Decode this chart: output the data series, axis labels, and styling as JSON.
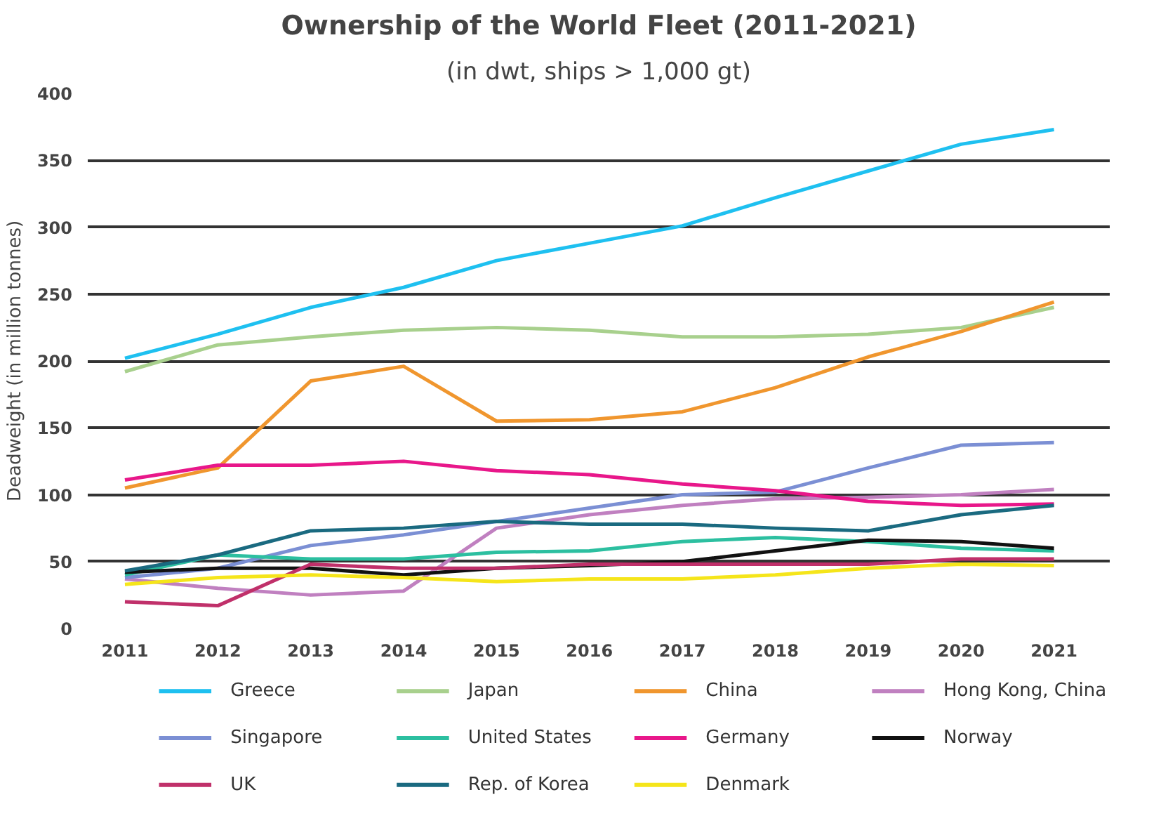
{
  "chart_data": {
    "type": "line",
    "title": "Ownership of the World Fleet (2011-2021)",
    "subtitle": "(in dwt, ships > 1,000 gt)",
    "ylabel": "Deadweight (in million tonnes)",
    "x": [
      2011,
      2012,
      2013,
      2014,
      2015,
      2016,
      2017,
      2018,
      2019,
      2020,
      2021
    ],
    "xlim": [
      2010.6,
      2021.6
    ],
    "xticks": [
      2011,
      2012,
      2013,
      2014,
      2015,
      2016,
      2017,
      2018,
      2019,
      2020,
      2021
    ],
    "ylim": [
      0,
      400
    ],
    "yticks": [
      0,
      50,
      100,
      150,
      200,
      250,
      300,
      350,
      400
    ],
    "grid": "y",
    "legend": "bottom",
    "series": [
      {
        "name": "Greece",
        "color": "#1ec0f0",
        "values": [
          202,
          220,
          240,
          255,
          275,
          288,
          301,
          322,
          342,
          362,
          373
        ]
      },
      {
        "name": "Japan",
        "color": "#a8d08d",
        "values": [
          192,
          212,
          218,
          223,
          225,
          223,
          218,
          218,
          220,
          225,
          240
        ]
      },
      {
        "name": "China",
        "color": "#f0962e",
        "values": [
          105,
          120,
          185,
          196,
          155,
          156,
          162,
          180,
          203,
          222,
          244
        ]
      },
      {
        "name": "Hong Kong, China",
        "color": "#c080c0",
        "values": [
          37,
          30,
          25,
          28,
          75,
          85,
          92,
          97,
          98,
          100,
          104
        ]
      },
      {
        "name": "Singapore",
        "color": "#7b8fd4",
        "values": [
          38,
          45,
          62,
          70,
          80,
          90,
          100,
          102,
          120,
          137,
          139
        ]
      },
      {
        "name": "United States",
        "color": "#2cbfa0",
        "values": [
          40,
          55,
          52,
          52,
          57,
          58,
          65,
          68,
          65,
          60,
          58
        ]
      },
      {
        "name": "Germany",
        "color": "#e8178a",
        "values": [
          111,
          122,
          122,
          125,
          118,
          115,
          108,
          103,
          95,
          92,
          93
        ]
      },
      {
        "name": "Norway",
        "color": "#111111",
        "values": [
          42,
          45,
          45,
          40,
          45,
          47,
          50,
          58,
          66,
          65,
          60
        ]
      },
      {
        "name": "UK",
        "color": "#c0306a",
        "values": [
          20,
          17,
          48,
          45,
          45,
          48,
          48,
          48,
          48,
          52,
          52
        ]
      },
      {
        "name": "Rep. of Korea",
        "color": "#1a6a80",
        "values": [
          43,
          55,
          73,
          75,
          80,
          78,
          78,
          75,
          73,
          85,
          92
        ]
      },
      {
        "name": "Denmark",
        "color": "#f5e51a",
        "values": [
          33,
          38,
          40,
          38,
          35,
          37,
          37,
          40,
          45,
          48,
          47
        ]
      }
    ]
  }
}
